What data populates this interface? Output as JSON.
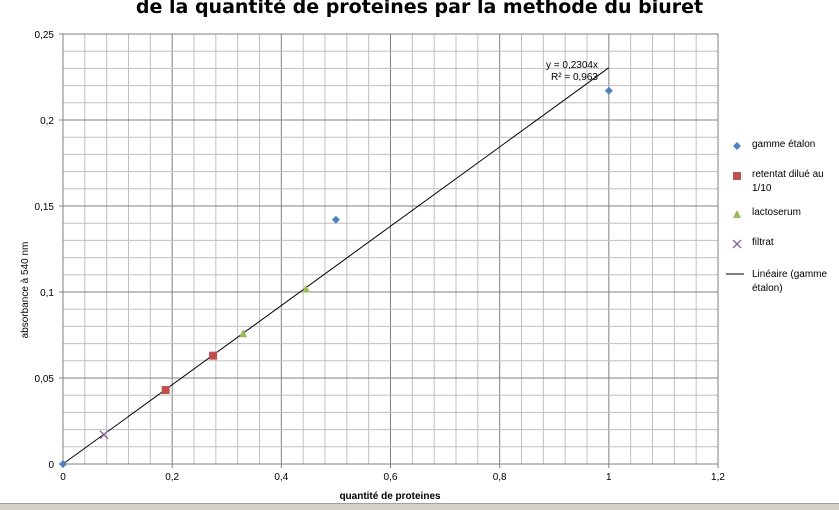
{
  "chart_data": {
    "type": "scatter",
    "title": "de la quantité de proteines par la methode du biuret",
    "xlabel": "quantité de proteines",
    "ylabel": "absorbance à 540 nm",
    "xlim": [
      0,
      1.2
    ],
    "ylim": [
      0,
      0.25
    ],
    "x_ticks": [
      "0",
      "0,2",
      "0,4",
      "0,6",
      "0,8",
      "1",
      "1,2"
    ],
    "y_ticks": [
      "0",
      "0,05",
      "0,1",
      "0,15",
      "0,2",
      "0,25"
    ],
    "grid": true,
    "legend_position": "right",
    "series": [
      {
        "name": "gamme étalon",
        "marker": "diamond",
        "color": "#4f81bd",
        "points": [
          [
            0,
            0
          ],
          [
            0.5,
            0.142
          ],
          [
            1.0,
            0.217
          ]
        ]
      },
      {
        "name": "retentat dilué au 1/10",
        "marker": "square",
        "color": "#c0504d",
        "points": [
          [
            0.188,
            0.043
          ],
          [
            0.275,
            0.063
          ]
        ]
      },
      {
        "name": "lactoserum",
        "marker": "triangle",
        "color": "#9bbb59",
        "points": [
          [
            0.33,
            0.076
          ],
          [
            0.445,
            0.102
          ]
        ]
      },
      {
        "name": "filtrat",
        "marker": "x",
        "color": "#8064a2",
        "points": [
          [
            0.075,
            0.017
          ]
        ]
      }
    ],
    "trendline": {
      "name": "Linéaire (gamme étalon)",
      "slope": 0.2304,
      "x_range": [
        0,
        1
      ],
      "color": "#000000",
      "equation": "y = 0,2304x",
      "r2": "R² = 0,963"
    }
  }
}
